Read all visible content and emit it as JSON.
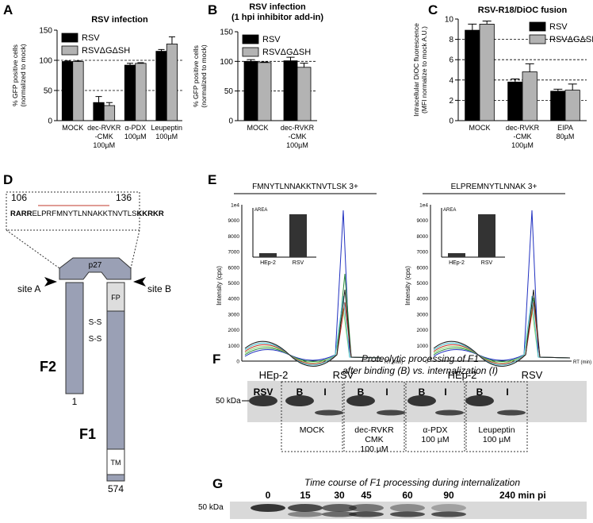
{
  "chart_data": [
    {
      "type": "bar",
      "panel": "A",
      "title": [
        "RSV  infection"
      ],
      "ylabel": [
        "% GFP positive cells",
        "(normalized to mock)"
      ],
      "categories": [
        [
          "MOCK"
        ],
        [
          "dec-RVKR",
          "-CMK",
          "100µM"
        ],
        [
          "α-PDX",
          "100µM"
        ],
        [
          "Leupeptin",
          "100µM"
        ]
      ],
      "series": [
        {
          "name": "RSV",
          "color": "#000000",
          "values": [
            98,
            30,
            92,
            115
          ],
          "errors": [
            1,
            10,
            3,
            3
          ]
        },
        {
          "name": "RSVΔGΔSH",
          "color": "#b3b3b3",
          "values": [
            98,
            25,
            95,
            127
          ],
          "errors": [
            1,
            5,
            1,
            12
          ]
        }
      ],
      "ylim": [
        0,
        150
      ],
      "yticks": [
        0,
        50,
        100,
        150
      ],
      "reference_lines": [
        50,
        100
      ],
      "legend": "upper left"
    },
    {
      "type": "bar",
      "panel": "B",
      "title": [
        "RSV infection",
        "(1 hpi inhibitor add-in)"
      ],
      "ylabel": [
        "% GFP positive cells",
        "(normalized to mock)"
      ],
      "categories": [
        [
          "MOCK"
        ],
        [
          "dec-RVKR",
          "-CMK",
          "100µM"
        ]
      ],
      "series": [
        {
          "name": "RSV",
          "color": "#000000",
          "values": [
            100,
            101
          ],
          "errors": [
            3,
            6
          ]
        },
        {
          "name": "RSVΔGΔSH",
          "color": "#b3b3b3",
          "values": [
            98,
            90
          ],
          "errors": [
            1,
            7
          ]
        }
      ],
      "ylim": [
        0,
        150
      ],
      "yticks": [
        0,
        50,
        100,
        150
      ],
      "reference_lines": [
        50,
        100
      ],
      "legend": "upper left"
    },
    {
      "type": "bar",
      "panel": "C",
      "title": [
        "RSV-R18/DiOC  fusion"
      ],
      "ylabel": [
        "Intracellular DiOC fluorescence",
        "(MFI normalize to mock A.U.)"
      ],
      "categories": [
        [
          "MOCK"
        ],
        [
          "dec-RVKR",
          "-CMK",
          "100µM"
        ],
        [
          "EIPA",
          "80µM"
        ]
      ],
      "series": [
        {
          "name": "RSV",
          "color": "#000000",
          "values": [
            8.9,
            3.8,
            2.9
          ],
          "errors": [
            0.6,
            0.3,
            0.2
          ]
        },
        {
          "name": "RSVΔGΔSH",
          "color": "#b3b3b3",
          "values": [
            9.5,
            4.8,
            3.0
          ],
          "errors": [
            0.3,
            0.8,
            0.6
          ]
        }
      ],
      "ylim": [
        0,
        10
      ],
      "yticks": [
        0,
        2,
        4,
        6,
        8,
        10
      ],
      "reference_lines": [
        2,
        4,
        6,
        8
      ],
      "legend": "upper right"
    }
  ],
  "diagram_d": {
    "panel": "D",
    "start": "106",
    "end": "136",
    "sequence": [
      "RARR",
      "ELPRFMNYTLNNAKKTNVTLS",
      "KKRKR"
    ],
    "p27": "p27",
    "site_a": "site A",
    "site_b": "site B",
    "fp": "FP",
    "disulfide": [
      "S-S",
      "S-S"
    ],
    "f2": "F2",
    "f2_end": "1",
    "f1": "F1",
    "tm": "TM",
    "f1_end": "574"
  },
  "panel_e": {
    "panel": "E",
    "plots": [
      {
        "peptide": "FMNYTLNNAKKTNVTLSK 3+",
        "left": "HEp-2",
        "right": "RSV"
      },
      {
        "peptide": "ELPREMNYTLNNAK 3+",
        "left": "HEp-2",
        "right": "RSV"
      }
    ],
    "yticks": [
      "1e4",
      "9000",
      "8000",
      "7000",
      "6000",
      "5000",
      "4000",
      "3000",
      "2000",
      "1000",
      "0"
    ],
    "ylabel": "Intensity (cps)",
    "xlabel": "RT (min)",
    "inset_label": "AREA",
    "inset_categories": [
      "HEp-2",
      "RSV"
    ]
  },
  "blot_f": {
    "panel": "F",
    "title": [
      "Proteolytic processing of F1",
      "after binding (B) vs. internalization (I)"
    ],
    "lanes": [
      "RSV",
      "B",
      "I",
      "B",
      "I",
      "B",
      "I",
      "B",
      "I"
    ],
    "marker": "50 kDa",
    "groups": [
      [
        "MOCK"
      ],
      [
        "dec-RVKR",
        "CMK",
        "100 µM"
      ],
      [
        "α-PDX",
        "100 µM"
      ],
      [
        "Leupeptin",
        "100 µM"
      ]
    ]
  },
  "blot_g": {
    "panel": "G",
    "title": "Time course of F1 processing during internalization",
    "lanes": [
      "0",
      "15",
      "30",
      "45",
      "60",
      "90",
      "240 min pi"
    ],
    "marker": "50 kDa"
  }
}
